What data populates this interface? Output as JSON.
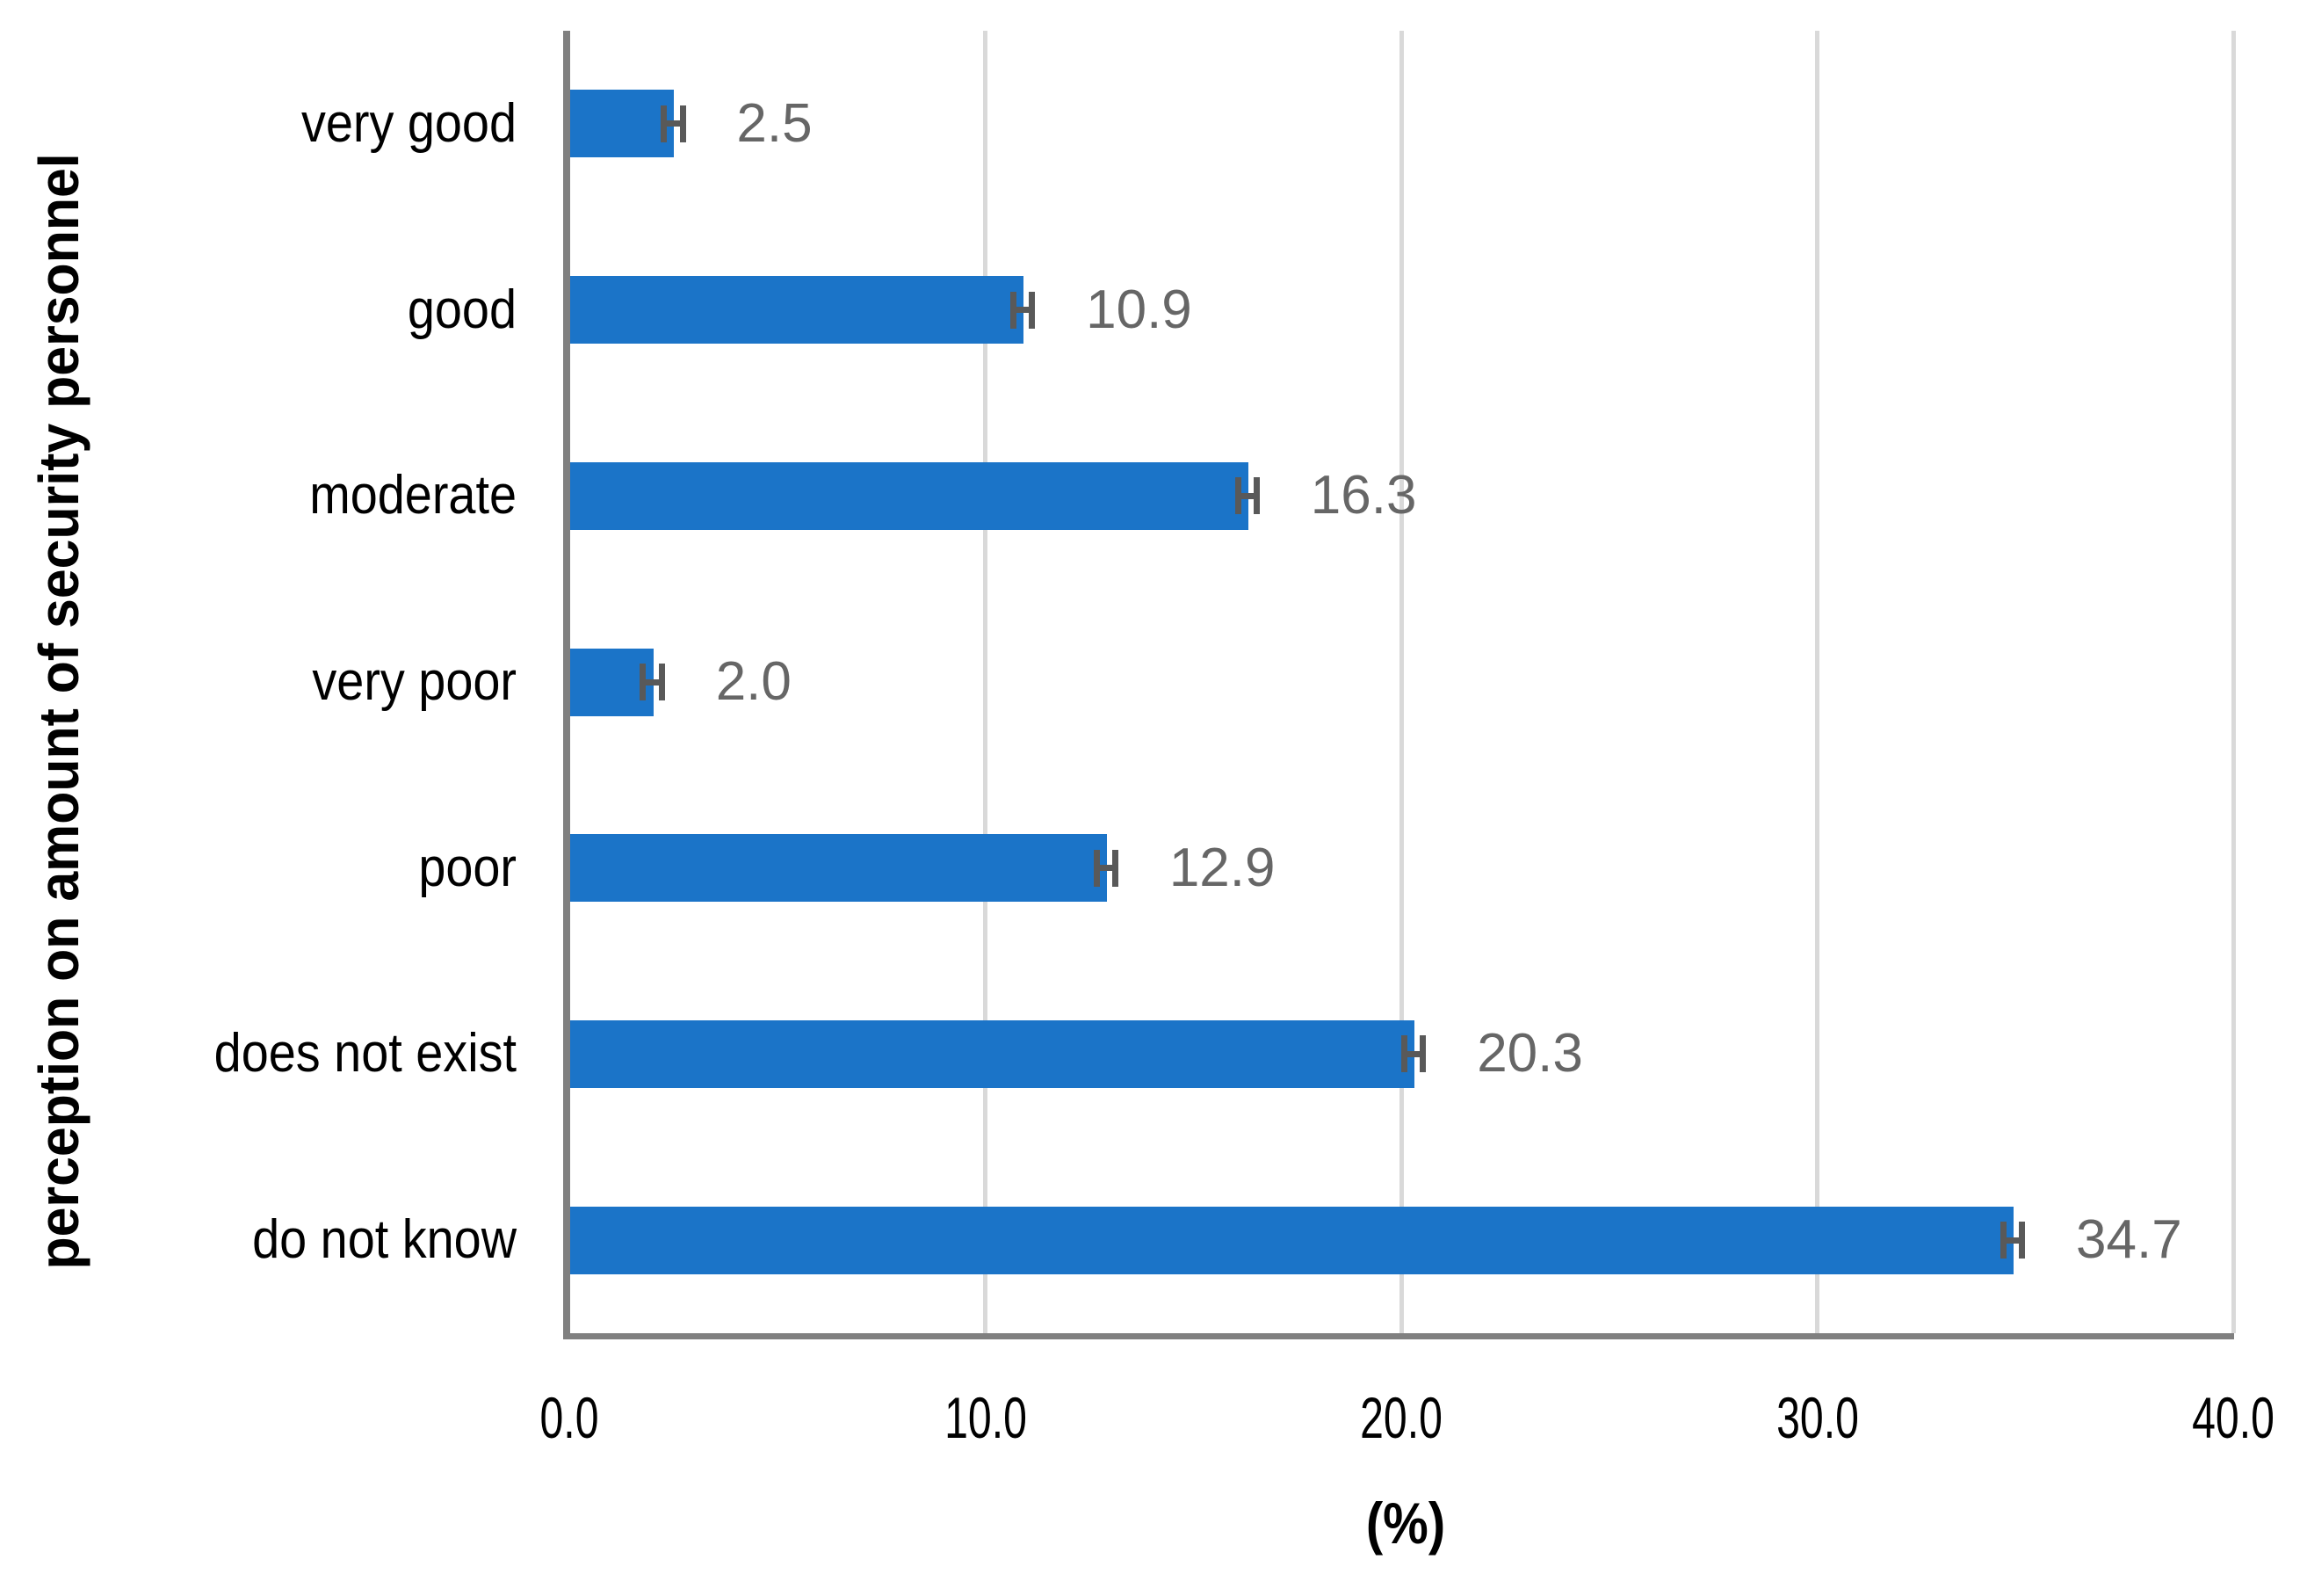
{
  "page": {
    "background": "#FFFFFF",
    "description": "Horizontal bar chart of respondents' perception on amount of security personnel, values in percent, with error bars and outside-end data labels"
  },
  "chart_data": {
    "type": "bar",
    "orientation": "horizontal",
    "title": "",
    "categories": [
      "very good",
      "good",
      "moderate",
      "very poor",
      "poor",
      "does not exist",
      "do not know"
    ],
    "values": [
      2.5,
      10.9,
      16.3,
      2.0,
      12.9,
      20.3,
      34.7
    ],
    "data_labels": [
      "2.5",
      "10.9",
      "16.3",
      "2.0",
      "12.9",
      "20.3",
      "34.7"
    ],
    "xlabel": "(%)",
    "ylabel": "perception on amount of security personnel",
    "xlim": [
      0,
      40
    ],
    "x_ticks": [
      0,
      10,
      20,
      30,
      40
    ],
    "x_tick_labels": [
      "0.0",
      "10.0",
      "20.0",
      "30.0",
      "40.0"
    ],
    "grid": {
      "vertical_major": true,
      "horizontal": false
    },
    "legend": "none",
    "error_bars": {
      "visible": true,
      "approx_half_width_pct": 0.3
    },
    "colors": {
      "bar": "#1B74C8",
      "data_label": "#666666",
      "error_bar": "#595959",
      "axis_line": "#808080",
      "gridline": "#D9D9D9",
      "text": "#000000",
      "background": "#FFFFFF"
    }
  }
}
